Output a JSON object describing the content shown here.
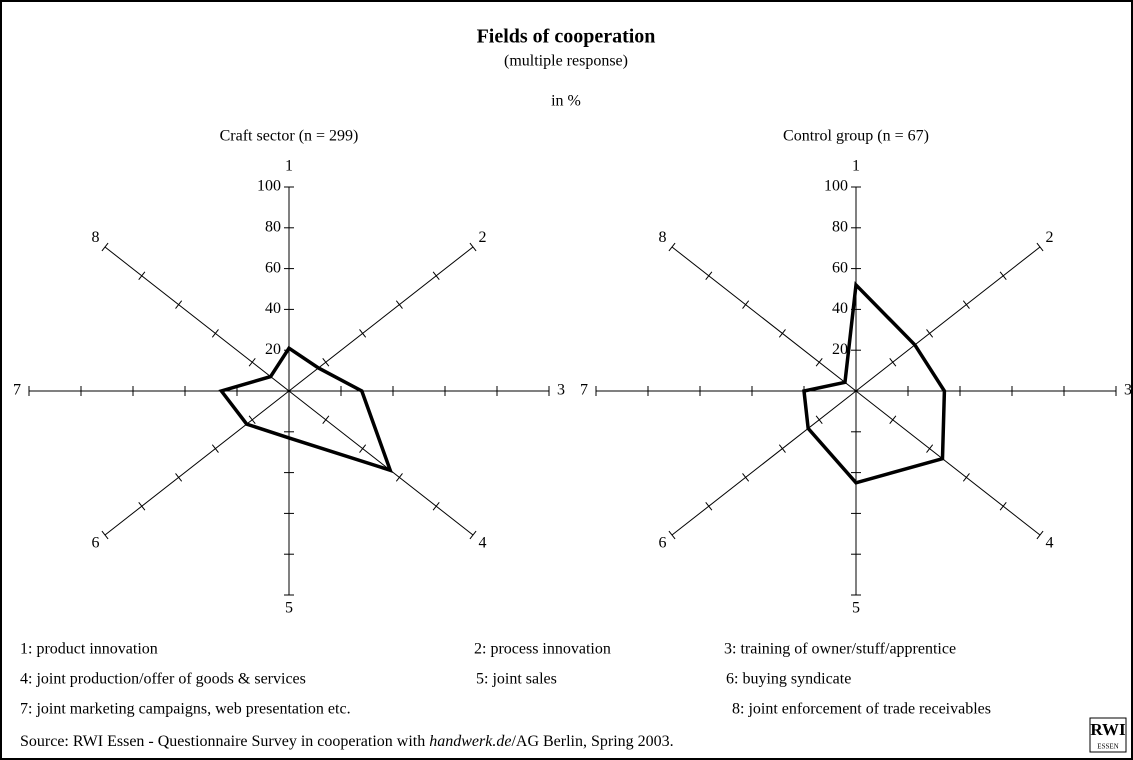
{
  "title": "Fields of cooperation",
  "subtitle": "(multiple response)",
  "unit": "in %",
  "chart_data": [
    {
      "type": "radar",
      "title": "Craft sector (n = 299)",
      "categories": [
        "1",
        "2",
        "3",
        "4",
        "5",
        "6",
        "7",
        "8"
      ],
      "values": [
        21,
        16,
        28,
        55,
        23,
        23,
        26,
        10
      ],
      "color": "#000000",
      "rlim": [
        0,
        100
      ],
      "rticks": [
        20,
        40,
        60,
        80,
        100
      ]
    },
    {
      "type": "radar",
      "title": "Control group (n = 67)",
      "categories": [
        "1",
        "2",
        "3",
        "4",
        "5",
        "6",
        "7",
        "8"
      ],
      "values": [
        52,
        32,
        34,
        47,
        45,
        26,
        20,
        6
      ],
      "color": "#000000",
      "rlim": [
        0,
        100
      ],
      "rticks": [
        20,
        40,
        60,
        80,
        100
      ]
    }
  ],
  "legend": [
    "1: product innovation",
    "2: process innovation",
    "3: training of owner/stuff/apprentice",
    "4: joint production/offer of goods & services",
    "5: joint sales",
    "6: buying syndicate",
    "7: joint marketing campaigns, web presentation etc.",
    "8: joint enforcement of trade receivables"
  ],
  "source": {
    "before": "Source: RWI Essen - Questionnaire Survey in cooperation with ",
    "italic": "handwerk.de",
    "after": "/AG Berlin, Spring 2003."
  },
  "logo": {
    "name": "RWI",
    "place": "ESSEN"
  }
}
